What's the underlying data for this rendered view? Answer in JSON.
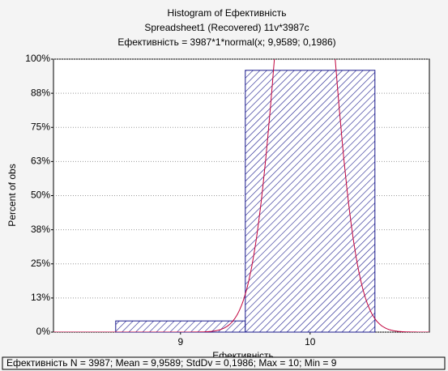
{
  "chart_data": {
    "type": "histogram",
    "title": "Histogram of Ефективність",
    "subtitle": "Spreadsheet1  (Recovered) 11v*3987c",
    "formula": "Ефективність = 3987*1*normal(x; 9,9589; 0,1986)",
    "x_label": "Ефективність",
    "y_label": "Percent of obs",
    "bins": [
      8.5,
      9.5,
      10.5
    ],
    "values": [
      4.1,
      95.9
    ],
    "color": "#1a1a8c",
    "fit": {
      "mean": 9.9589,
      "sd": 0.1986,
      "color": "#c0003c"
    },
    "xlim": [
      8.02,
      10.92
    ],
    "xticks": [
      9,
      10
    ],
    "ylim": [
      0,
      100
    ],
    "yticks": [
      {
        "value": 0,
        "label": "0%"
      },
      {
        "value": 12.5,
        "label": "13%"
      },
      {
        "value": 25,
        "label": "25%"
      },
      {
        "value": 37.5,
        "label": "38%"
      },
      {
        "value": 50,
        "label": "50%"
      },
      {
        "value": 62.5,
        "label": "63%"
      },
      {
        "value": 75,
        "label": "75%"
      },
      {
        "value": 87.5,
        "label": "88%"
      },
      {
        "value": 100,
        "label": "100%"
      }
    ],
    "grid": true,
    "summary": "Ефективність  N = 3987; Mean = 9,9589; StdDv = 0,1986; Max = 10; Min = 9"
  }
}
